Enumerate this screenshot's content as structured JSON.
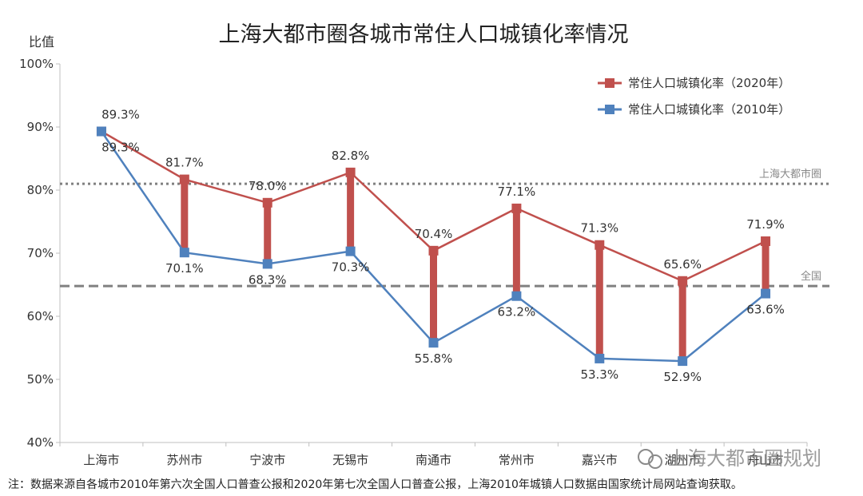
{
  "chart_data": {
    "type": "line",
    "title": "上海大都市圈各城市常住人口城镇化率情况",
    "ylabel": "比值",
    "ylim": [
      40,
      100
    ],
    "yticks": [
      "40%",
      "50%",
      "60%",
      "70%",
      "80%",
      "90%",
      "100%"
    ],
    "categories": [
      "上海市",
      "苏州市",
      "宁波市",
      "无锡市",
      "南通市",
      "常州市",
      "嘉兴市",
      "湖州市",
      "舟山市"
    ],
    "series": [
      {
        "name": "常住人口城镇化率（2020年）",
        "color": "#c0504d",
        "values": [
          89.3,
          81.7,
          78.0,
          82.8,
          70.4,
          77.1,
          71.3,
          65.6,
          71.9
        ],
        "labels": [
          "89.3%",
          "81.7%",
          "78.0%",
          "82.8%",
          "70.4%",
          "77.1%",
          "71.3%",
          "65.6%",
          "71.9%"
        ]
      },
      {
        "name": "常住人口城镇化率（2010年）",
        "color": "#4f81bd",
        "values": [
          89.3,
          70.1,
          68.3,
          70.3,
          55.8,
          63.2,
          53.3,
          52.9,
          63.6
        ],
        "labels": [
          "89.3%",
          "70.1%",
          "68.3%",
          "70.3%",
          "55.8%",
          "63.2%",
          "53.3%",
          "52.9%",
          "63.6%"
        ]
      }
    ],
    "reference_lines": [
      {
        "label": "上海大都市圈",
        "value": 81.0,
        "style": "dotted",
        "color": "#808080"
      },
      {
        "label": "全国",
        "value": 64.8,
        "style": "dashed",
        "color": "#808080"
      }
    ],
    "legend": "top-right",
    "grid": false
  },
  "footnote": "注：数据来源自各城市2010年第六次全国人口普查公报和2020年第七次全国人口普查公报，上海2010年城镇人口数据由国家统计局网站查询获取。",
  "watermark": "上海大都市圈规划"
}
